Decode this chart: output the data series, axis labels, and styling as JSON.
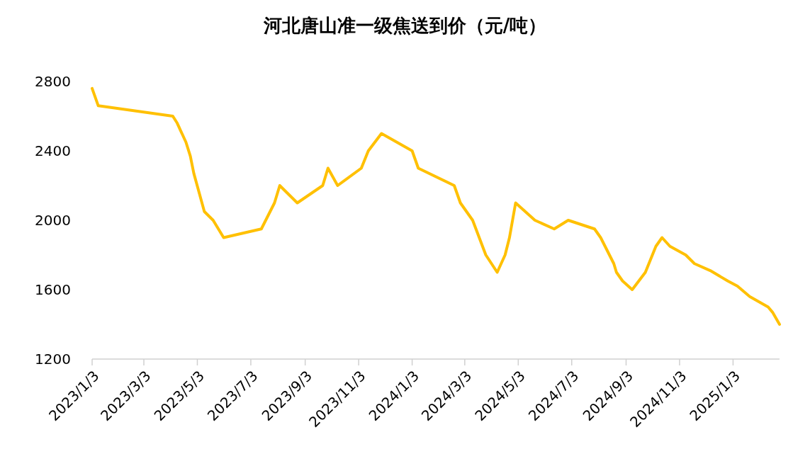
{
  "chart_data": {
    "type": "line",
    "title": "河北唐山准一级焦送到价（元/吨）",
    "x": [
      "2023-01-03",
      "2023-01-10",
      "2023-04-05",
      "2023-04-10",
      "2023-04-20",
      "2023-04-25",
      "2023-04-29",
      "2023-05-11",
      "2023-05-21",
      "2023-06-02",
      "2023-07-15",
      "2023-07-30",
      "2023-08-05",
      "2023-08-25",
      "2023-09-23",
      "2023-09-29",
      "2023-10-10",
      "2023-11-06",
      "2023-11-14",
      "2023-11-29",
      "2024-01-03",
      "2024-01-10",
      "2024-02-20",
      "2024-02-27",
      "2024-03-12",
      "2024-03-27",
      "2024-04-09",
      "2024-04-18",
      "2024-04-23",
      "2024-04-30",
      "2024-05-22",
      "2024-06-13",
      "2024-06-29",
      "2024-07-29",
      "2024-08-05",
      "2024-08-10",
      "2024-08-20",
      "2024-08-23",
      "2024-08-30",
      "2024-09-10",
      "2024-09-25",
      "2024-10-07",
      "2024-10-14",
      "2024-10-23",
      "2024-11-10",
      "2024-11-20",
      "2024-12-08",
      "2024-12-28",
      "2025-01-08",
      "2025-01-22",
      "2025-02-12",
      "2025-02-17",
      "2025-02-25"
    ],
    "series": [
      {
        "color": "#ffc000",
        "values": [
          2760,
          2660,
          2600,
          2560,
          2450,
          2370,
          2270,
          2050,
          2000,
          1900,
          1950,
          2100,
          2200,
          2100,
          2200,
          2300,
          2200,
          2300,
          2400,
          2500,
          2400,
          2300,
          2200,
          2100,
          2000,
          1800,
          1700,
          1800,
          1900,
          2100,
          2000,
          1950,
          2000,
          1950,
          1900,
          1850,
          1750,
          1700,
          1650,
          1600,
          1700,
          1850,
          1900,
          1850,
          1800,
          1750,
          1710,
          1650,
          1620,
          1560,
          1500,
          1470,
          1400
        ]
      }
    ],
    "xlim": [
      "2023-01-03",
      "2025-02-25"
    ],
    "xticks": [
      {
        "value": "2023-01-03",
        "label": "2023/1/3"
      },
      {
        "value": "2023-03-03",
        "label": "2023/3/3"
      },
      {
        "value": "2023-05-03",
        "label": "2023/5/3"
      },
      {
        "value": "2023-07-03",
        "label": "2023/7/3"
      },
      {
        "value": "2023-09-03",
        "label": "2023/9/3"
      },
      {
        "value": "2023-11-03",
        "label": "2023/11/3"
      },
      {
        "value": "2024-01-03",
        "label": "2024/1/3"
      },
      {
        "value": "2024-03-03",
        "label": "2024/3/3"
      },
      {
        "value": "2024-05-03",
        "label": "2024/5/3"
      },
      {
        "value": "2024-07-03",
        "label": "2024/7/3"
      },
      {
        "value": "2024-09-03",
        "label": "2024/9/3"
      },
      {
        "value": "2024-11-03",
        "label": "2024/11/3"
      },
      {
        "value": "2025-01-03",
        "label": "2025/1/3"
      }
    ],
    "ylim": [
      1200,
      2800
    ],
    "yticks": [
      1200,
      1600,
      2000,
      2400,
      2800
    ],
    "grid": false,
    "line_style": "solid"
  }
}
